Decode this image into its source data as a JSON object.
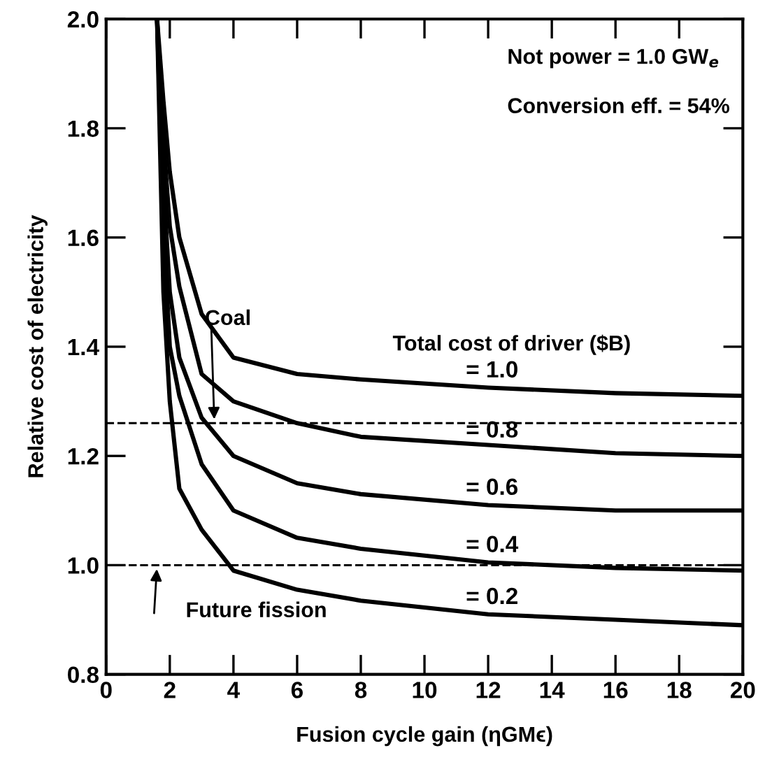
{
  "chart_data": {
    "type": "line",
    "xlabel": "Fusion cycle gain (ηGMϵ)",
    "ylabel": "Relative cost of electricity",
    "legend_title": "Total cost of driver ($B)",
    "xlim": [
      0,
      20
    ],
    "ylim": [
      0.8,
      2.0
    ],
    "xticks": [
      0,
      2,
      4,
      6,
      8,
      10,
      12,
      14,
      16,
      18,
      20
    ],
    "yticks": [
      0.8,
      {
        "value": 1.0,
        "label": "1.0"
      },
      1.2,
      1.4,
      1.6,
      1.8,
      {
        "value": 2.0,
        "label": "2.0"
      }
    ],
    "grid": false,
    "legend": false,
    "marker": "none",
    "line_style": "solid",
    "series": [
      {
        "name": "= 1.0",
        "color": "#000000",
        "x": [
          1.6,
          1.8,
          2.0,
          2.3,
          3,
          4,
          6,
          8,
          12,
          16,
          20
        ],
        "values": [
          2.0,
          1.85,
          1.72,
          1.6,
          1.46,
          1.38,
          1.35,
          1.34,
          1.325,
          1.315,
          1.31
        ]
      },
      {
        "name": "= 0.8",
        "color": "#000000",
        "x": [
          1.6,
          1.8,
          2.0,
          2.3,
          3,
          4,
          6,
          8,
          12,
          16,
          20
        ],
        "values": [
          2.0,
          1.78,
          1.62,
          1.51,
          1.35,
          1.3,
          1.26,
          1.235,
          1.22,
          1.205,
          1.2
        ]
      },
      {
        "name": "= 0.6",
        "color": "#000000",
        "x": [
          1.6,
          1.8,
          2.0,
          2.3,
          3,
          4,
          6,
          8,
          12,
          16,
          20
        ],
        "values": [
          2.0,
          1.7,
          1.5,
          1.38,
          1.27,
          1.2,
          1.15,
          1.13,
          1.11,
          1.1,
          1.1
        ]
      },
      {
        "name": "= 0.4",
        "color": "#000000",
        "x": [
          1.6,
          1.8,
          2.0,
          2.3,
          3,
          4,
          6,
          8,
          12,
          16,
          20
        ],
        "values": [
          2.0,
          1.62,
          1.4,
          1.31,
          1.185,
          1.1,
          1.05,
          1.03,
          1.005,
          0.995,
          0.99
        ]
      },
      {
        "name": "= 0.2",
        "color": "#000000",
        "x": [
          1.6,
          1.8,
          2.0,
          2.3,
          3,
          4,
          6,
          8,
          12,
          16,
          20
        ],
        "values": [
          2.0,
          1.5,
          1.3,
          1.14,
          1.065,
          0.99,
          0.955,
          0.935,
          0.91,
          0.9,
          0.89
        ]
      }
    ],
    "ref_lines": [
      {
        "axis": "y",
        "value": 1.26,
        "label": "Coal",
        "line_style": "dashed",
        "color": "#000000"
      },
      {
        "axis": "y",
        "value": 1.0,
        "label": "Future fission",
        "line_style": "dashed",
        "color": "#000000"
      }
    ],
    "annotations": [
      "Not power = 1.0 GW$_{e}$",
      "Conversion eff. = 54%"
    ]
  }
}
